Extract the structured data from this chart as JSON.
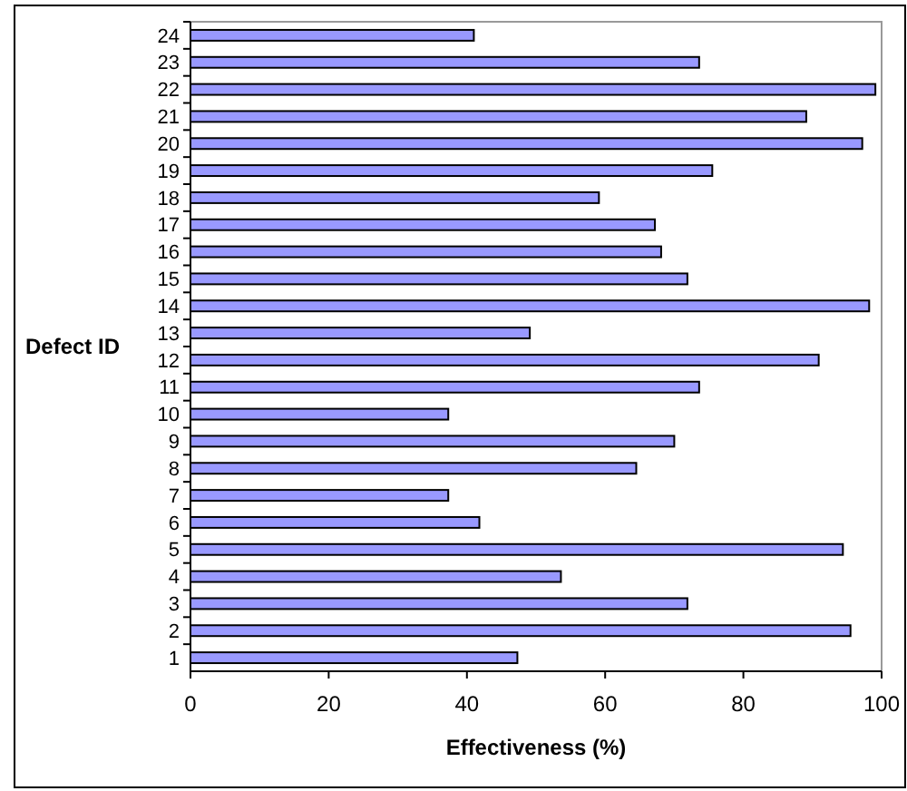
{
  "chart_data": {
    "type": "bar",
    "orientation": "horizontal",
    "xlabel": "Effectiveness (%)",
    "ylabel": "Defect ID",
    "categories": [
      "24",
      "23",
      "22",
      "21",
      "20",
      "19",
      "18",
      "17",
      "16",
      "15",
      "14",
      "13",
      "12",
      "11",
      "10",
      "9",
      "8",
      "7",
      "6",
      "5",
      "4",
      "3",
      "2",
      "1"
    ],
    "values": [
      41,
      73.6,
      99.1,
      89.1,
      97.2,
      75.5,
      59.1,
      67.2,
      68.1,
      71.9,
      98.2,
      49.1,
      90.9,
      73.6,
      37.3,
      70,
      64.5,
      37.3,
      41.8,
      94.4,
      53.6,
      71.9,
      95.5,
      47.3
    ],
    "color": "#9999ff",
    "xlim": [
      0,
      100
    ],
    "xticks": [
      0,
      20,
      40,
      60,
      80,
      100
    ]
  }
}
